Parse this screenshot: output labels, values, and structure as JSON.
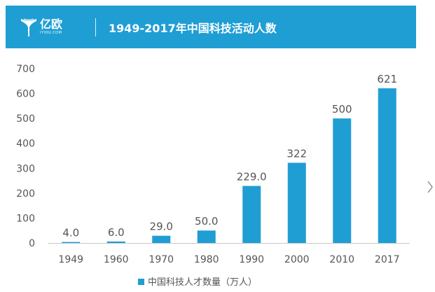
{
  "header": {
    "logo_name": "亿欧",
    "logo_sub": "IYIOU.COM",
    "title": "1949-2017年中国科技活动人数",
    "color": "#1f9ed4"
  },
  "chart_data": {
    "type": "bar",
    "title": "1949-2017年中国科技活动人数",
    "categories": [
      "1949",
      "1960",
      "1970",
      "1980",
      "1990",
      "2000",
      "2010",
      "2017"
    ],
    "series": [
      {
        "name": "中国科技人才数量（万人）",
        "values": [
          4.0,
          6.0,
          29.0,
          50.0,
          229.0,
          322,
          500,
          621
        ],
        "labels": [
          "4.0",
          "6.0",
          "29.0",
          "50.0",
          "229.0",
          "322",
          "500",
          "621"
        ],
        "color": "#1f9ed4"
      }
    ],
    "ylim": [
      0,
      700
    ],
    "yticks": [
      "0",
      "100",
      "200",
      "300",
      "400",
      "500",
      "600",
      "700"
    ],
    "xlabel": "",
    "ylabel": "",
    "grid": false,
    "legend": "bottom-center"
  },
  "side_control": {
    "icon": "chevron-right-icon"
  }
}
